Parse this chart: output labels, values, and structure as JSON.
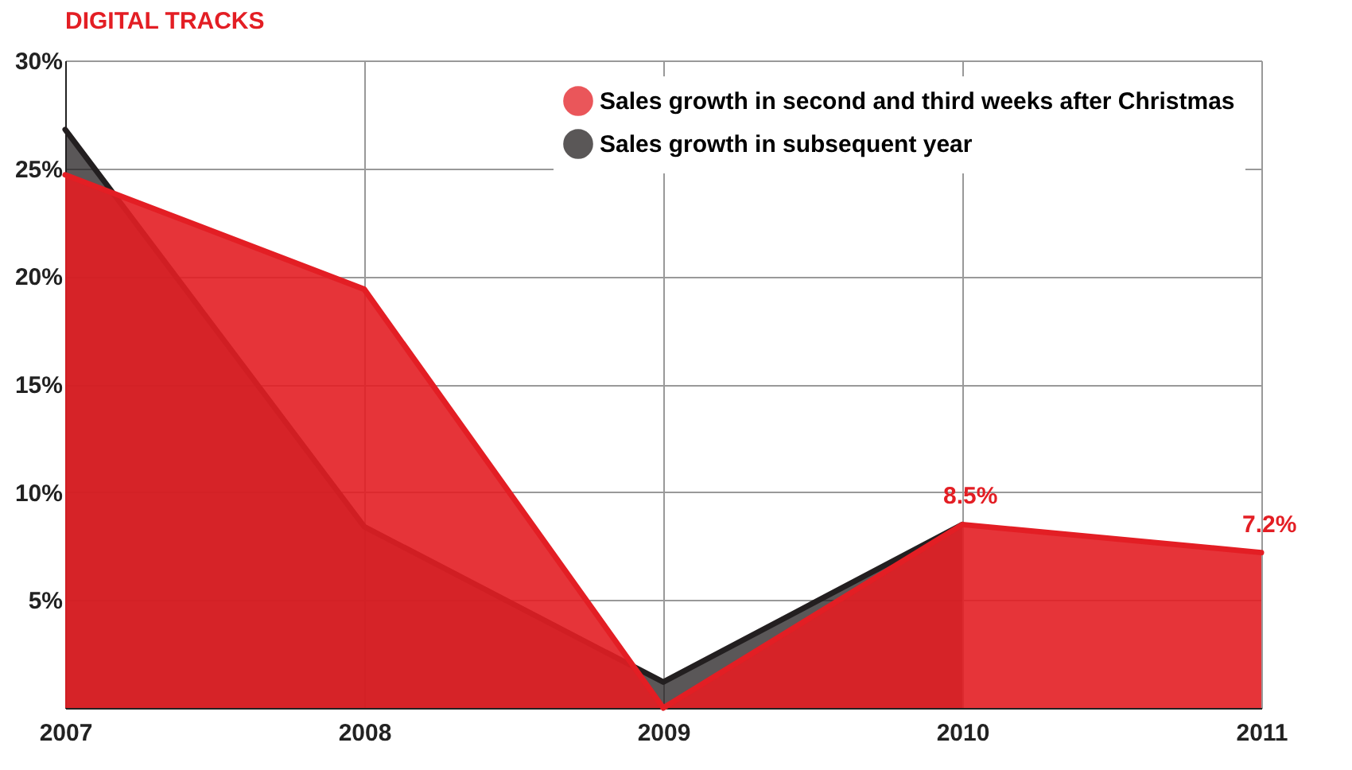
{
  "chart_data": {
    "type": "area",
    "title": "DIGITAL TRACKS",
    "categories": [
      "2007",
      "2008",
      "2009",
      "2010",
      "2011"
    ],
    "series": [
      {
        "name": "Sales growth in second and third weeks after Christmas",
        "color": "#e31e24",
        "values": [
          24.7,
          19.4,
          0,
          8.5,
          7.2
        ],
        "value_labels": [
          null,
          null,
          null,
          "8.5%",
          "7.2%"
        ]
      },
      {
        "name": "Sales growth in subsequent year",
        "color": "#231f20",
        "values": [
          26.8,
          8.4,
          1.2,
          8.5,
          null
        ]
      }
    ],
    "ylim": [
      0,
      30
    ],
    "yticks": [
      {
        "value": 5,
        "label": "5%"
      },
      {
        "value": 10,
        "label": "10%"
      },
      {
        "value": 15,
        "label": "15%"
      },
      {
        "value": 20,
        "label": "20%"
      },
      {
        "value": 25,
        "label": "25%"
      },
      {
        "value": 30,
        "label": "30%"
      }
    ],
    "grid": true,
    "legend": "top right"
  }
}
